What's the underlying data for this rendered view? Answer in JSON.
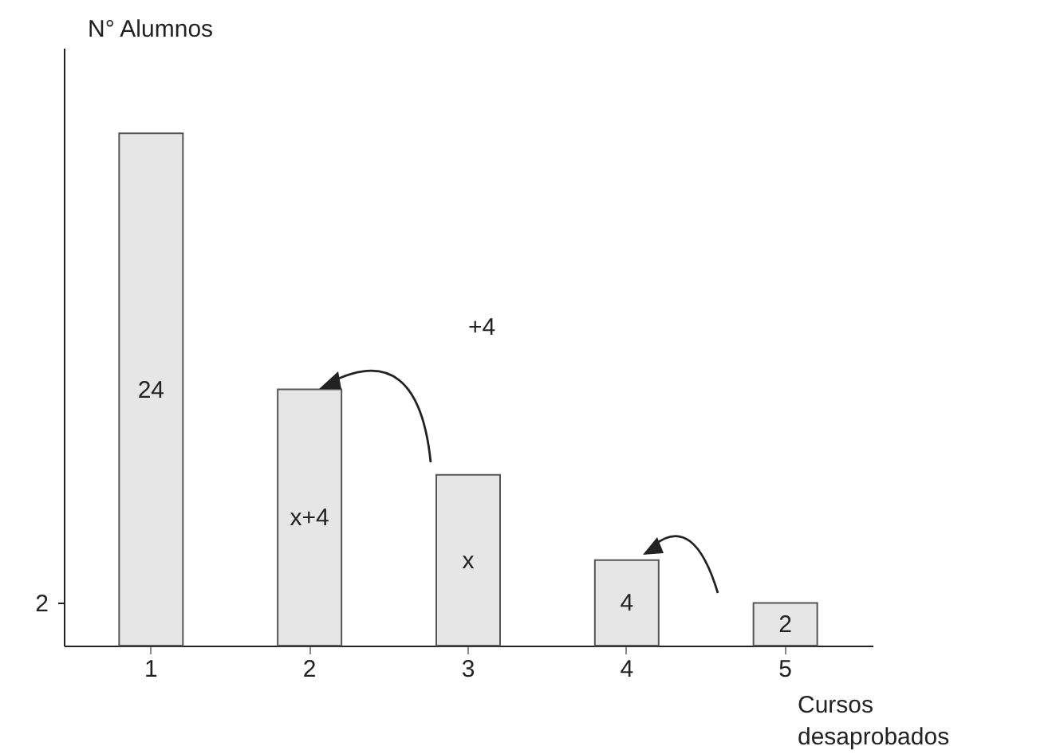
{
  "chart_data": {
    "type": "bar",
    "xlabel": "Cursos desaprobados",
    "ylabel": "N° Alumnos",
    "categories": [
      "1",
      "2",
      "3",
      "4",
      "5"
    ],
    "values": [
      24,
      12,
      8,
      4,
      2
    ],
    "value_labels": [
      "24",
      "x+4",
      "x",
      "4",
      "2"
    ],
    "color": "#e6e6e6",
    "ylim": [
      0,
      28
    ],
    "yticks": [
      2
    ],
    "annotations": [
      "+4"
    ],
    "grid": false
  }
}
